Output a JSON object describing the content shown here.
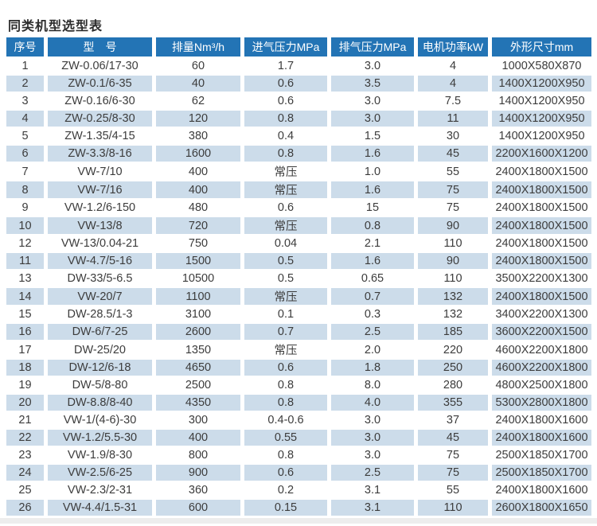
{
  "page": {
    "title": "同类机型选型表"
  },
  "colors": {
    "header_bg": "#2374b5",
    "header_text": "#ffffff",
    "row_bg": "#ffffff",
    "row_alt_bg": "#ccdcea",
    "cell_text": "#3c3c3c",
    "title_text": "#2d2d2d",
    "bottom_strip": "#ededed"
  },
  "table": {
    "columns": [
      "序号",
      "型　号",
      "排量Nm³/h",
      "进气压力MPa",
      "排气压力MPa",
      "电机功率kW",
      "外形尺寸mm"
    ],
    "column_keys": [
      "index",
      "model",
      "displacement",
      "intake-pressure",
      "exhaust-pressure",
      "motor-power",
      "dimensions"
    ],
    "rows": [
      [
        "1",
        "ZW-0.06/17-30",
        "60",
        "1.7",
        "3.0",
        "4",
        "1000X580X870"
      ],
      [
        "2",
        "ZW-0.1/6-35",
        "40",
        "0.6",
        "3.5",
        "4",
        "1400X1200X950"
      ],
      [
        "3",
        "ZW-0.16/6-30",
        "62",
        "0.6",
        "3.0",
        "7.5",
        "1400X1200X950"
      ],
      [
        "4",
        "ZW-0.25/8-30",
        "120",
        "0.8",
        "3.0",
        "11",
        "1400X1200X950"
      ],
      [
        "5",
        "ZW-1.35/4-15",
        "380",
        "0.4",
        "1.5",
        "30",
        "1400X1200X950"
      ],
      [
        "6",
        "ZW-3.3/8-16",
        "1600",
        "0.8",
        "1.6",
        "45",
        "2200X1600X1200"
      ],
      [
        "7",
        "VW-7/10",
        "400",
        "常压",
        "1.0",
        "55",
        "2400X1800X1500"
      ],
      [
        "8",
        "VW-7/16",
        "400",
        "常压",
        "1.6",
        "75",
        "2400X1800X1500"
      ],
      [
        "9",
        "VW-1.2/6-150",
        "480",
        "0.6",
        "15",
        "75",
        "2400X1800X1500"
      ],
      [
        "10",
        "VW-13/8",
        "720",
        "常压",
        "0.8",
        "90",
        "2400X1800X1500"
      ],
      [
        "12",
        "VW-13/0.04-21",
        "750",
        "0.04",
        "2.1",
        "110",
        "2400X1800X1500"
      ],
      [
        "11",
        "VW-4.7/5-16",
        "1500",
        "0.5",
        "1.6",
        "90",
        "2400X1800X1500"
      ],
      [
        "13",
        "DW-33/5-6.5",
        "10500",
        "0.5",
        "0.65",
        "110",
        "3500X2200X1300"
      ],
      [
        "14",
        "VW-20/7",
        "1100",
        "常压",
        "0.7",
        "132",
        "2400X1800X1500"
      ],
      [
        "15",
        "DW-28.5/1-3",
        "3100",
        "0.1",
        "0.3",
        "132",
        "3400X2200X1300"
      ],
      [
        "16",
        "DW-6/7-25",
        "2600",
        "0.7",
        "2.5",
        "185",
        "3600X2200X1500"
      ],
      [
        "17",
        "DW-25/20",
        "1350",
        "常压",
        "2.0",
        "220",
        "4600X2200X1800"
      ],
      [
        "18",
        "DW-12/6-18",
        "4650",
        "0.6",
        "1.8",
        "250",
        "4600X2200X1800"
      ],
      [
        "19",
        "DW-5/8-80",
        "2500",
        "0.8",
        "8.0",
        "280",
        "4800X2500X1800"
      ],
      [
        "20",
        "DW-8.8/8-40",
        "4350",
        "0.8",
        "4.0",
        "355",
        "5300X2800X1800"
      ],
      [
        "21",
        "VW-1/(4-6)-30",
        "300",
        "0.4-0.6",
        "3.0",
        "37",
        "2400X1800X1600"
      ],
      [
        "22",
        "VW-1.2/5.5-30",
        "400",
        "0.55",
        "3.0",
        "45",
        "2400X1800X1600"
      ],
      [
        "23",
        "VW-1.9/8-30",
        "800",
        "0.8",
        "3.0",
        "75",
        "2500X1850X1700"
      ],
      [
        "24",
        "VW-2.5/6-25",
        "900",
        "0.6",
        "2.5",
        "75",
        "2500X1850X1700"
      ],
      [
        "25",
        "VW-2.3/2-31",
        "360",
        "0.2",
        "3.1",
        "55",
        "2400X1800X1600"
      ],
      [
        "26",
        "VW-4.4/1.5-31",
        "600",
        "0.15",
        "3.1",
        "110",
        "2600X1800X1650"
      ]
    ]
  }
}
